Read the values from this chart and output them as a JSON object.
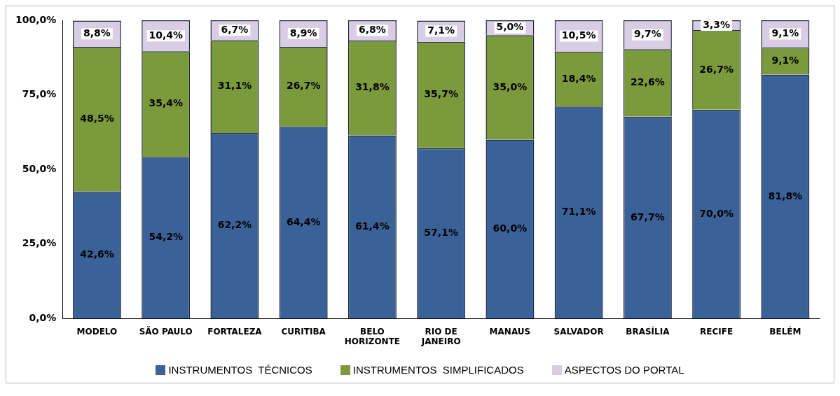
{
  "chart_data": {
    "type": "bar",
    "stacked": true,
    "categories": [
      "MODELO",
      "SÃO PAULO",
      "FORTALEZA",
      "CURITIBA",
      "BELO HORIZONTE",
      "RIO DE JANEIRO",
      "MANAUS",
      "SALVADOR",
      "BRASÍLIA",
      "RECIFE",
      "BELÉM"
    ],
    "series": [
      {
        "name": "INSTRUMENTOS  TÉCNICOS",
        "color": "#3b6298",
        "values": [
          42.6,
          54.2,
          62.2,
          64.4,
          61.4,
          57.1,
          60.0,
          71.1,
          67.7,
          70.0,
          81.8
        ],
        "value_labels": [
          "42,6%",
          "54,2%",
          "62,2%",
          "64,4%",
          "61,4%",
          "57,1%",
          "60,0%",
          "71,1%",
          "67,7%",
          "70,0%",
          "81,8%"
        ]
      },
      {
        "name": "INSTRUMENTOS  SIMPLIFICADOS",
        "color": "#7b9a3c",
        "values": [
          48.5,
          35.4,
          31.1,
          26.7,
          31.8,
          35.7,
          35.0,
          18.4,
          22.6,
          26.7,
          9.1
        ],
        "value_labels": [
          "48,5%",
          "35,4%",
          "31,1%",
          "26,7%",
          "31,8%",
          "35,7%",
          "35,0%",
          "18,4%",
          "22,6%",
          "26,7%",
          "9,1%"
        ]
      },
      {
        "name": "ASPECTOS DO PORTAL",
        "color": "#d8cde4",
        "values": [
          8.8,
          10.4,
          6.7,
          8.9,
          6.8,
          7.1,
          5.0,
          10.5,
          9.7,
          3.3,
          9.1
        ],
        "value_labels": [
          "8,8%",
          "10,4%",
          "6,7%",
          "8,9%",
          "6,8%",
          "7,1%",
          "5,0%",
          "10,5%",
          "9,7%",
          "3,3%",
          "9,1%"
        ]
      }
    ],
    "ylim": [
      0,
      100
    ],
    "yticks": [
      {
        "value": 0,
        "label": "0,0%"
      },
      {
        "value": 25,
        "label": "25,0%"
      },
      {
        "value": 50,
        "label": "50,0%"
      },
      {
        "value": 75,
        "label": "75,0%"
      },
      {
        "value": 100,
        "label": "100,0%"
      }
    ],
    "grid": false,
    "legend": "bottom"
  }
}
